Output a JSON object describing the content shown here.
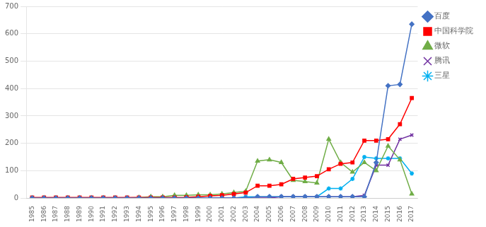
{
  "chart_data": {
    "type": "line",
    "x": [
      1985,
      1986,
      1987,
      1988,
      1989,
      1990,
      1991,
      1992,
      1993,
      1994,
      1995,
      1996,
      1997,
      1998,
      1999,
      2000,
      2001,
      2002,
      2003,
      2004,
      2005,
      2006,
      2007,
      2008,
      2009,
      2010,
      2011,
      2012,
      2013,
      2014,
      2015,
      2016,
      2017
    ],
    "series": [
      {
        "name": "百度",
        "color": "#4472C4",
        "marker": "diamond",
        "values": [
          0,
          0,
          0,
          0,
          0,
          0,
          0,
          0,
          0,
          0,
          0,
          0,
          0,
          0,
          0,
          0,
          0,
          0,
          0,
          5,
          5,
          5,
          5,
          5,
          5,
          5,
          5,
          5,
          5,
          130,
          410,
          415,
          635
        ]
      },
      {
        "name": "中国科学院",
        "color": "#FF0000",
        "marker": "square",
        "values": [
          2,
          2,
          2,
          2,
          2,
          2,
          2,
          2,
          2,
          2,
          2,
          2,
          2,
          3,
          5,
          8,
          10,
          15,
          20,
          45,
          45,
          50,
          70,
          75,
          80,
          105,
          125,
          130,
          210,
          210,
          215,
          270,
          365
        ]
      },
      {
        "name": "微软",
        "color": "#70AD47",
        "marker": "triangle",
        "values": [
          0,
          0,
          0,
          0,
          0,
          0,
          0,
          0,
          0,
          2,
          5,
          5,
          10,
          10,
          12,
          12,
          15,
          20,
          25,
          135,
          140,
          130,
          65,
          60,
          55,
          215,
          130,
          95,
          130,
          100,
          190,
          140,
          15
        ]
      },
      {
        "name": "腾讯",
        "color": "#7030A0",
        "marker": "x",
        "values": [
          0,
          0,
          0,
          0,
          0,
          0,
          0,
          0,
          0,
          0,
          0,
          0,
          0,
          0,
          0,
          0,
          0,
          0,
          0,
          0,
          0,
          5,
          5,
          5,
          5,
          5,
          5,
          5,
          10,
          120,
          120,
          215,
          230
        ]
      },
      {
        "name": "三星",
        "color": "#00B0F0",
        "marker": "star",
        "values": [
          0,
          0,
          0,
          0,
          0,
          0,
          0,
          0,
          0,
          0,
          0,
          0,
          0,
          0,
          0,
          0,
          0,
          0,
          5,
          5,
          5,
          5,
          5,
          5,
          5,
          35,
          35,
          70,
          150,
          145,
          145,
          145,
          90
        ]
      }
    ],
    "xlim": [
      1984.5,
      2017.5
    ],
    "xticks": [
      1985,
      1986,
      1987,
      1988,
      1989,
      1990,
      1991,
      1992,
      1993,
      1994,
      1995,
      1996,
      1997,
      1998,
      1999,
      2000,
      2001,
      2002,
      2003,
      2004,
      2005,
      2006,
      2007,
      2008,
      2009,
      2010,
      2011,
      2012,
      2013,
      2014,
      2015,
      2016,
      2017
    ],
    "ylim": [
      0,
      700
    ],
    "yticks": [
      0,
      100,
      200,
      300,
      400,
      500,
      600,
      700
    ],
    "grid": true,
    "legend": "right"
  }
}
